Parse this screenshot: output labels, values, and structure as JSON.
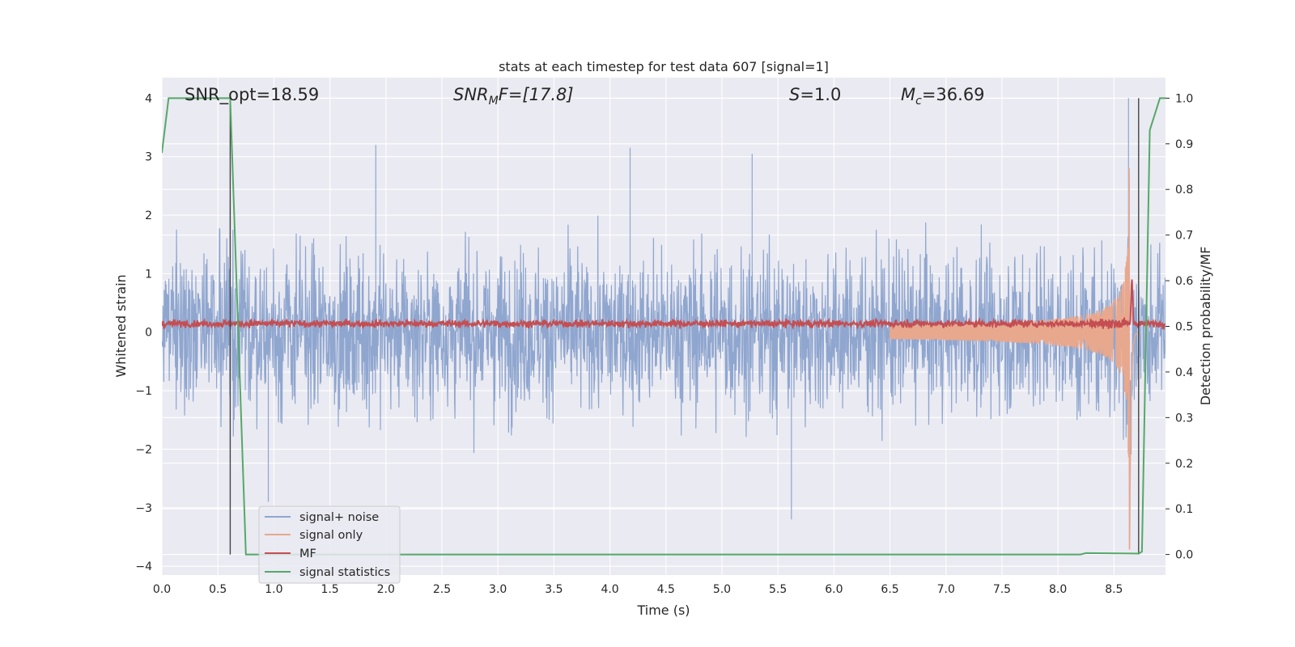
{
  "chart_data": {
    "type": "line",
    "title": "stats at each timestep for test data 607 [signal=1]",
    "xlabel": "Time (s)",
    "ylabel_left": "Whitened strain",
    "ylabel_right": "Detection probability/MF",
    "xlim": [
      0.0,
      8.96
    ],
    "ylim_left": [
      -4.15,
      4.35
    ],
    "ylim_right": [
      -0.045,
      1.045
    ],
    "x_ticks": [
      "0.0",
      "0.5",
      "1.0",
      "1.5",
      "2.0",
      "2.5",
      "3.0",
      "3.5",
      "4.0",
      "4.5",
      "5.0",
      "5.5",
      "6.0",
      "6.5",
      "7.0",
      "7.5",
      "8.0",
      "8.5"
    ],
    "y_ticks_left": [
      "4",
      "3",
      "2",
      "1",
      "0",
      "−1",
      "−2",
      "−3",
      "−4"
    ],
    "y_ticks_right": [
      "1.0",
      "0.9",
      "0.8",
      "0.7",
      "0.6",
      "0.5",
      "0.4",
      "0.3",
      "0.2",
      "0.1",
      "0.0"
    ],
    "grid": true,
    "legend_position": "lower-left",
    "annotations": {
      "snr_opt": "SNR_opt=18.59",
      "snr_mf_head": "SNR",
      "snr_mf_sub": "M",
      "snr_mf_tail": "F=[17.8]",
      "s_head": "S",
      "s_tail": "=1.0",
      "mc_head": "M",
      "mc_sub": "c",
      "mc_tail": "=36.69"
    },
    "vertical_markers_x": [
      0.61,
      8.72
    ],
    "series": [
      {
        "name": "signal+ noise",
        "color": "#8fa6cf",
        "axis": "left",
        "noise_amplitude_typical": 1.3,
        "noise_peak_max": 3.2,
        "notable_spikes": [
          {
            "x": 0.61,
            "y": 2.25
          },
          {
            "x": 1.91,
            "y": 3.2
          },
          {
            "x": 4.18,
            "y": 3.15
          },
          {
            "x": 5.27,
            "y": 3.05
          },
          {
            "x": 5.62,
            "y": -3.2
          },
          {
            "x": 0.95,
            "y": -2.9
          },
          {
            "x": 8.63,
            "y": 4.0
          }
        ]
      },
      {
        "name": "signal only",
        "color": "#e8a88e",
        "axis": "left",
        "chirp_start_x": 6.5,
        "chirp_merger_x": 8.64,
        "chirp_peak_amplitude": 3.8,
        "chirp_end_x": 8.72
      },
      {
        "name": "MF",
        "color": "#c44e52",
        "axis": "right",
        "baseline": 0.506,
        "noise_amplitude": 0.009,
        "peak": {
          "x": 8.66,
          "y": 0.61
        }
      },
      {
        "name": "signal statistics",
        "color": "#55a868",
        "axis": "right",
        "x": [
          0.0,
          0.06,
          0.61,
          0.75,
          8.2,
          8.25,
          8.72,
          8.75,
          8.82,
          8.91,
          8.96
        ],
        "y": [
          0.88,
          1.0,
          1.0,
          0.0,
          0.0,
          0.003,
          0.002,
          0.006,
          0.93,
          1.0,
          1.0
        ]
      }
    ]
  }
}
